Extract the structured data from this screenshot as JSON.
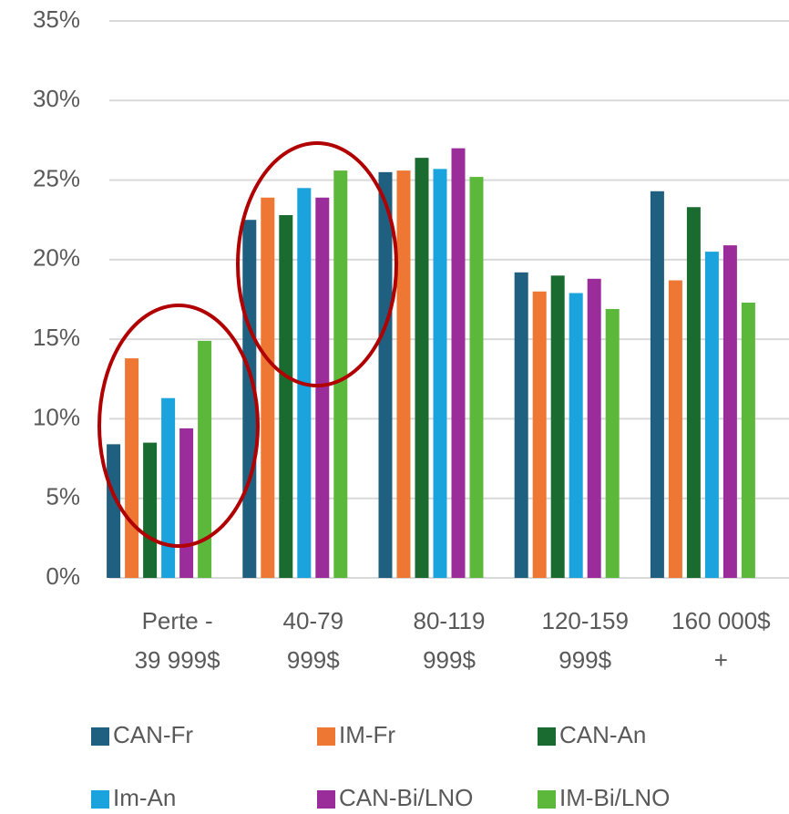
{
  "chart_data": {
    "type": "bar",
    "categories": [
      [
        "Perte -",
        "39 999$"
      ],
      [
        "40-79",
        "999$"
      ],
      [
        "80-119",
        "999$"
      ],
      [
        "120-159",
        "999$"
      ],
      [
        "160 000$",
        "+"
      ]
    ],
    "series": [
      {
        "name": "CAN-Fr",
        "color": "#1f5f7f",
        "values": [
          8.4,
          22.5,
          25.5,
          19.2,
          24.3
        ]
      },
      {
        "name": "IM-Fr",
        "color": "#ee7733",
        "values": [
          13.8,
          23.9,
          25.6,
          18.0,
          18.7
        ]
      },
      {
        "name": "CAN-An",
        "color": "#1a6b30",
        "values": [
          8.5,
          22.8,
          26.4,
          19.0,
          23.3
        ]
      },
      {
        "name": "Im-An",
        "color": "#1aa3dd",
        "values": [
          11.3,
          24.5,
          25.7,
          17.9,
          20.5
        ]
      },
      {
        "name": "CAN-Bi/LNO",
        "color": "#9b2d9b",
        "values": [
          9.4,
          23.9,
          27.0,
          18.8,
          20.9
        ]
      },
      {
        "name": "IM-Bi/LNO",
        "color": "#5cb83a",
        "values": [
          14.9,
          25.6,
          25.2,
          16.9,
          17.3
        ]
      }
    ],
    "ylim": [
      0,
      35
    ],
    "yticks": [
      {
        "value": 0,
        "label": "0%"
      },
      {
        "value": 5,
        "label": "5%"
      },
      {
        "value": 10,
        "label": "10%"
      },
      {
        "value": 15,
        "label": "15%"
      },
      {
        "value": 20,
        "label": "20%"
      },
      {
        "value": 25,
        "label": "25%"
      },
      {
        "value": 30,
        "label": "30%"
      },
      {
        "value": 35,
        "label": "35%"
      }
    ],
    "grid": true
  }
}
